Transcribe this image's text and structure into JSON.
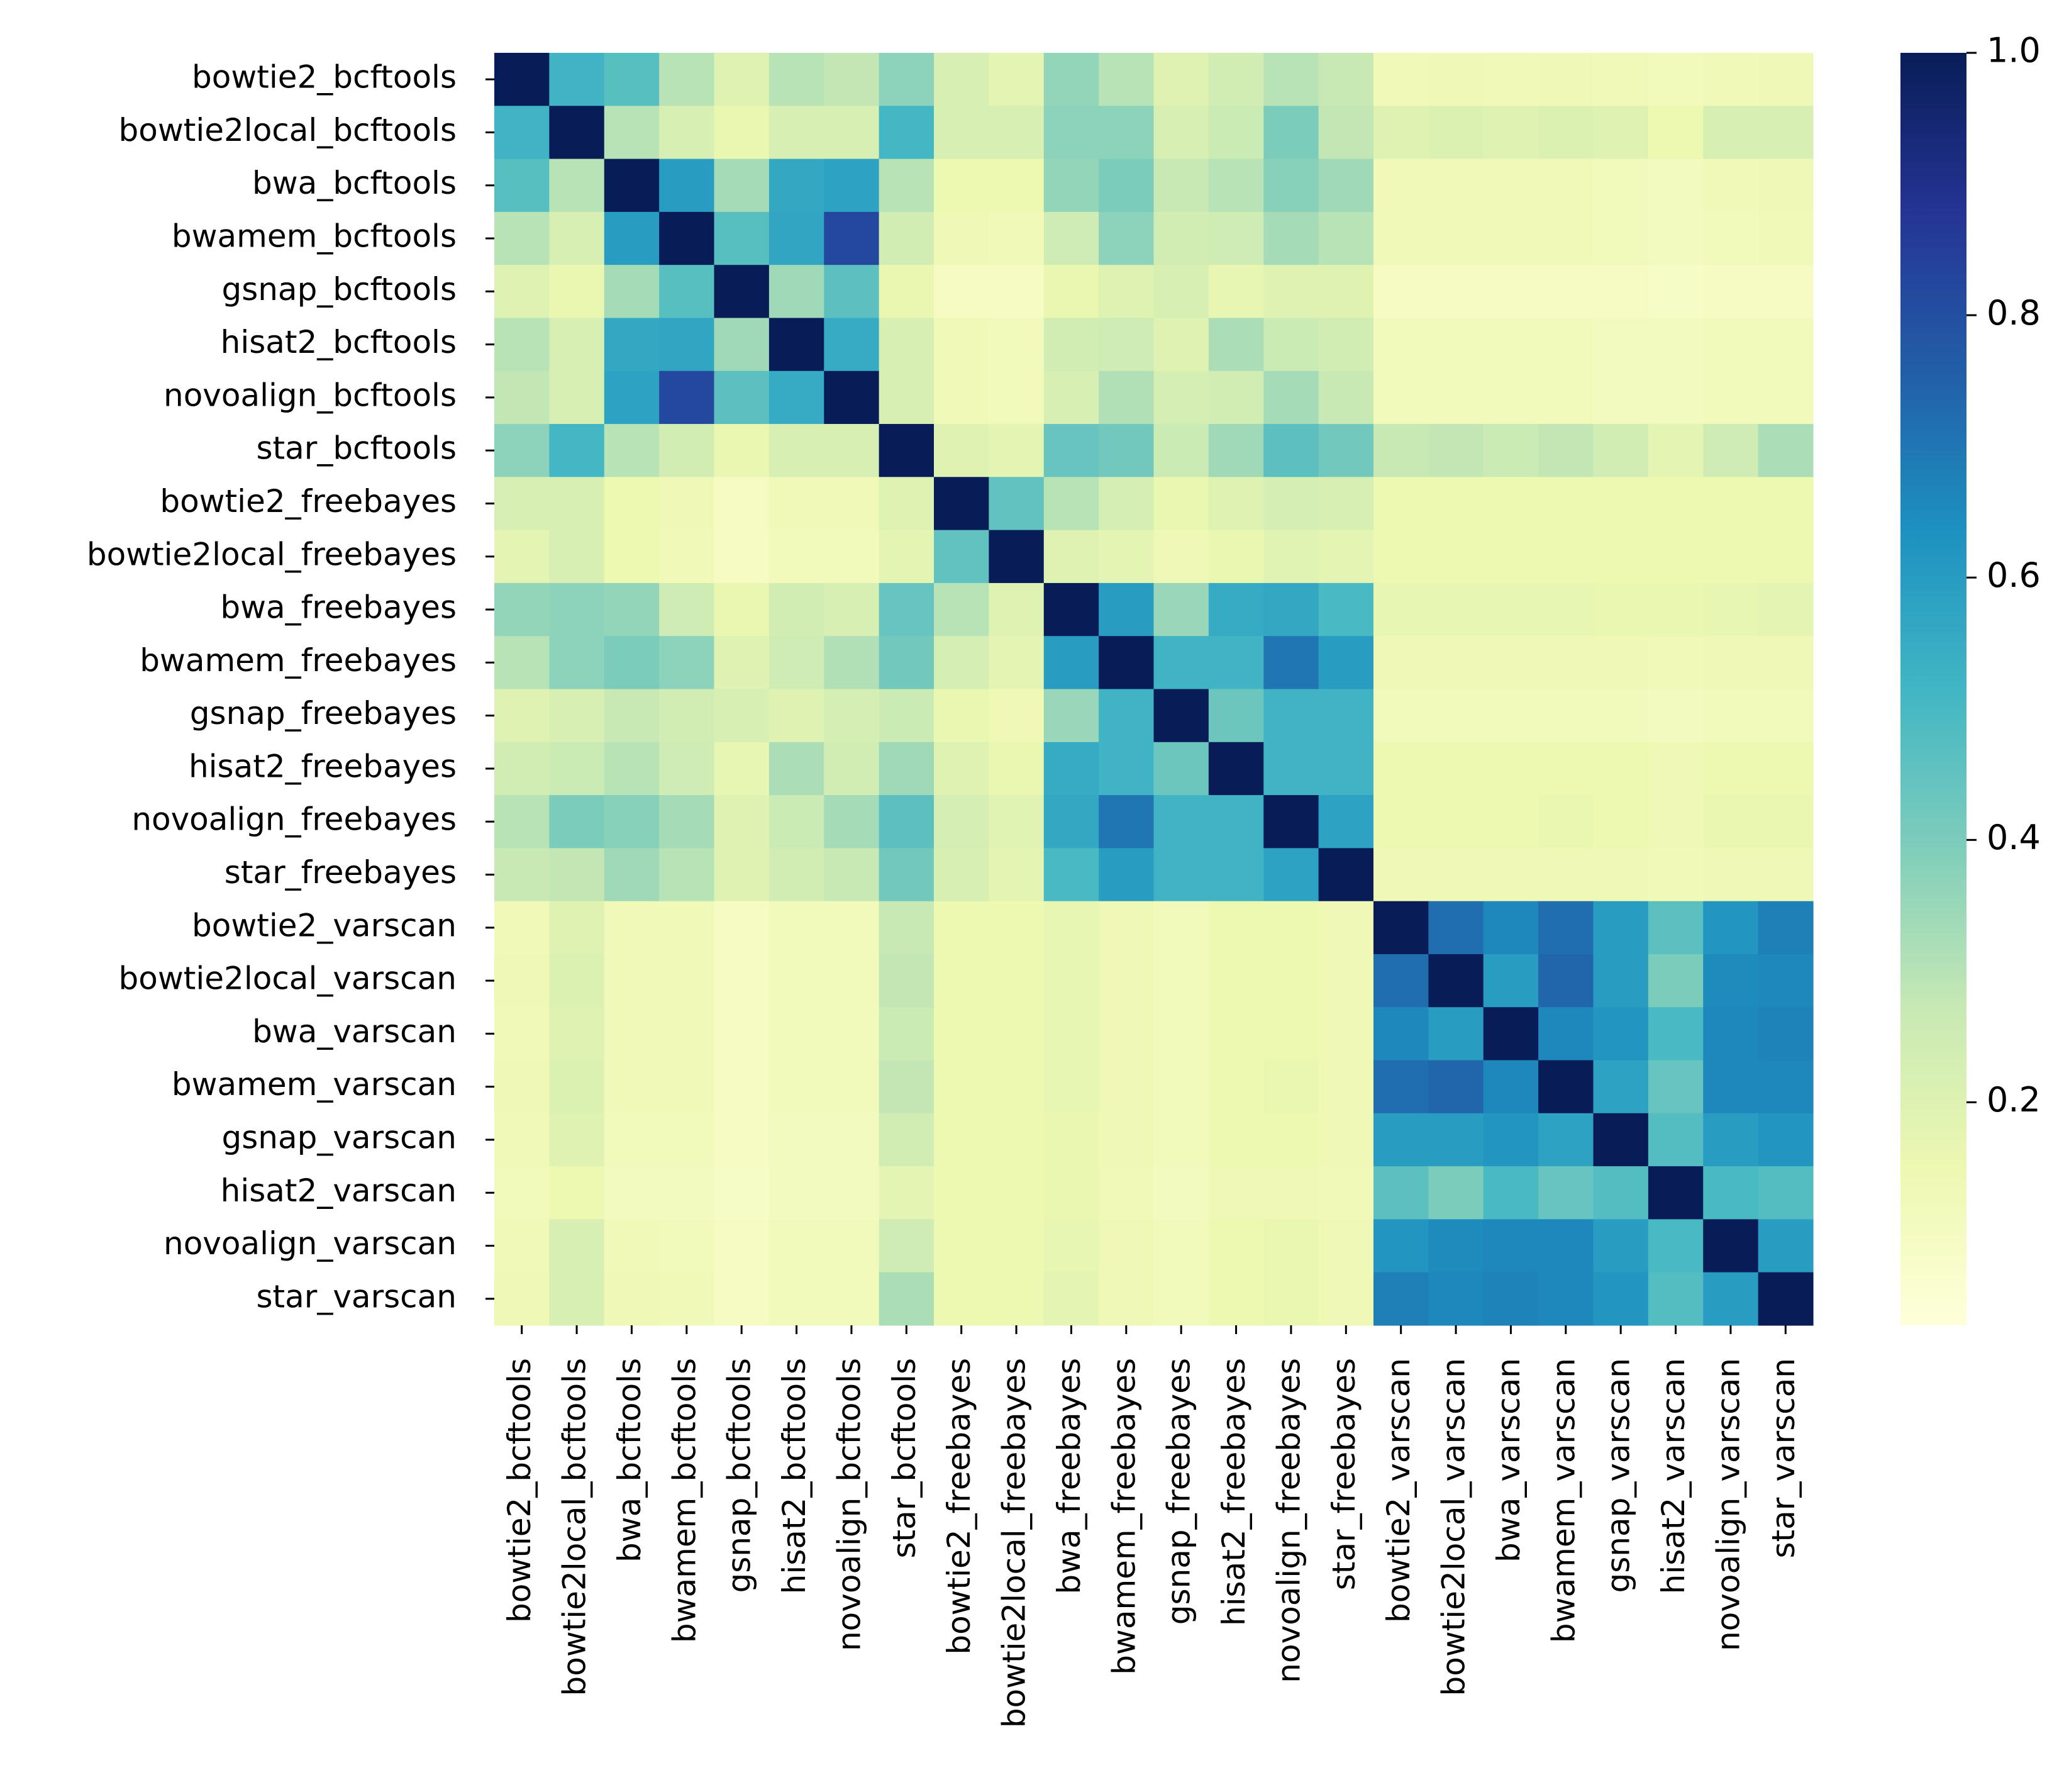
{
  "chart_data": {
    "type": "heatmap",
    "title": "",
    "xlabel": "",
    "ylabel": "",
    "labels": [
      "bowtie2_bcftools",
      "bowtie2local_bcftools",
      "bwa_bcftools",
      "bwamem_bcftools",
      "gsnap_bcftools",
      "hisat2_bcftools",
      "novoalign_bcftools",
      "star_bcftools",
      "bowtie2_freebayes",
      "bowtie2local_freebayes",
      "bwa_freebayes",
      "bwamem_freebayes",
      "gsnap_freebayes",
      "hisat2_freebayes",
      "novoalign_freebayes",
      "star_freebayes",
      "bowtie2_varscan",
      "bowtie2local_varscan",
      "bwa_varscan",
      "bwamem_varscan",
      "gsnap_varscan",
      "hisat2_varscan",
      "novoalign_varscan",
      "star_varscan"
    ],
    "values": [
      [
        1.0,
        0.52,
        0.47,
        0.3,
        0.2,
        0.3,
        0.28,
        0.37,
        0.22,
        0.18,
        0.36,
        0.3,
        0.2,
        0.24,
        0.3,
        0.27,
        0.13,
        0.14,
        0.13,
        0.14,
        0.13,
        0.12,
        0.13,
        0.14
      ],
      [
        0.52,
        1.0,
        0.3,
        0.22,
        0.16,
        0.22,
        0.22,
        0.51,
        0.22,
        0.22,
        0.37,
        0.37,
        0.22,
        0.26,
        0.4,
        0.28,
        0.2,
        0.21,
        0.2,
        0.21,
        0.2,
        0.15,
        0.22,
        0.22
      ],
      [
        0.47,
        0.3,
        1.0,
        0.6,
        0.33,
        0.56,
        0.58,
        0.3,
        0.15,
        0.15,
        0.36,
        0.4,
        0.27,
        0.3,
        0.38,
        0.34,
        0.13,
        0.13,
        0.13,
        0.13,
        0.12,
        0.11,
        0.13,
        0.14
      ],
      [
        0.3,
        0.22,
        0.6,
        1.0,
        0.47,
        0.57,
        0.82,
        0.24,
        0.14,
        0.13,
        0.25,
        0.37,
        0.24,
        0.25,
        0.33,
        0.3,
        0.13,
        0.13,
        0.13,
        0.13,
        0.12,
        0.11,
        0.12,
        0.13
      ],
      [
        0.2,
        0.16,
        0.33,
        0.47,
        1.0,
        0.34,
        0.46,
        0.16,
        0.1,
        0.1,
        0.16,
        0.2,
        0.22,
        0.17,
        0.2,
        0.2,
        0.1,
        0.1,
        0.1,
        0.1,
        0.1,
        0.09,
        0.1,
        0.1
      ],
      [
        0.3,
        0.22,
        0.56,
        0.57,
        0.34,
        1.0,
        0.55,
        0.22,
        0.13,
        0.12,
        0.24,
        0.25,
        0.2,
        0.32,
        0.26,
        0.24,
        0.12,
        0.12,
        0.12,
        0.12,
        0.11,
        0.11,
        0.12,
        0.12
      ],
      [
        0.28,
        0.22,
        0.58,
        0.82,
        0.46,
        0.55,
        1.0,
        0.22,
        0.13,
        0.12,
        0.22,
        0.31,
        0.23,
        0.24,
        0.33,
        0.27,
        0.12,
        0.12,
        0.12,
        0.12,
        0.11,
        0.11,
        0.12,
        0.12
      ],
      [
        0.37,
        0.51,
        0.3,
        0.24,
        0.16,
        0.22,
        0.22,
        1.0,
        0.2,
        0.18,
        0.44,
        0.42,
        0.26,
        0.34,
        0.46,
        0.42,
        0.27,
        0.28,
        0.26,
        0.28,
        0.24,
        0.18,
        0.25,
        0.32
      ],
      [
        0.22,
        0.22,
        0.15,
        0.14,
        0.1,
        0.13,
        0.13,
        0.2,
        1.0,
        0.45,
        0.3,
        0.23,
        0.16,
        0.2,
        0.23,
        0.22,
        0.15,
        0.15,
        0.15,
        0.15,
        0.15,
        0.15,
        0.15,
        0.15
      ],
      [
        0.18,
        0.22,
        0.15,
        0.13,
        0.1,
        0.12,
        0.12,
        0.18,
        0.45,
        1.0,
        0.2,
        0.18,
        0.14,
        0.16,
        0.19,
        0.18,
        0.15,
        0.15,
        0.15,
        0.15,
        0.15,
        0.15,
        0.15,
        0.15
      ],
      [
        0.36,
        0.37,
        0.36,
        0.25,
        0.16,
        0.24,
        0.22,
        0.44,
        0.3,
        0.2,
        1.0,
        0.6,
        0.35,
        0.55,
        0.56,
        0.5,
        0.17,
        0.17,
        0.17,
        0.17,
        0.16,
        0.16,
        0.17,
        0.18
      ],
      [
        0.3,
        0.37,
        0.4,
        0.37,
        0.2,
        0.25,
        0.31,
        0.42,
        0.23,
        0.18,
        0.6,
        1.0,
        0.52,
        0.52,
        0.7,
        0.6,
        0.14,
        0.14,
        0.14,
        0.14,
        0.14,
        0.13,
        0.14,
        0.14
      ],
      [
        0.2,
        0.22,
        0.27,
        0.24,
        0.22,
        0.2,
        0.23,
        0.26,
        0.16,
        0.14,
        0.35,
        0.52,
        1.0,
        0.43,
        0.52,
        0.52,
        0.12,
        0.12,
        0.12,
        0.12,
        0.12,
        0.11,
        0.12,
        0.12
      ],
      [
        0.24,
        0.26,
        0.3,
        0.25,
        0.17,
        0.32,
        0.24,
        0.34,
        0.2,
        0.16,
        0.55,
        0.52,
        0.43,
        1.0,
        0.52,
        0.52,
        0.15,
        0.15,
        0.15,
        0.15,
        0.15,
        0.14,
        0.15,
        0.15
      ],
      [
        0.3,
        0.4,
        0.38,
        0.33,
        0.2,
        0.26,
        0.33,
        0.46,
        0.23,
        0.19,
        0.56,
        0.7,
        0.52,
        0.52,
        1.0,
        0.58,
        0.15,
        0.15,
        0.15,
        0.16,
        0.15,
        0.14,
        0.16,
        0.16
      ],
      [
        0.27,
        0.28,
        0.34,
        0.3,
        0.2,
        0.24,
        0.27,
        0.42,
        0.22,
        0.18,
        0.5,
        0.6,
        0.52,
        0.52,
        0.58,
        1.0,
        0.14,
        0.14,
        0.14,
        0.14,
        0.14,
        0.13,
        0.14,
        0.14
      ],
      [
        0.13,
        0.2,
        0.13,
        0.13,
        0.1,
        0.12,
        0.12,
        0.27,
        0.15,
        0.15,
        0.17,
        0.14,
        0.12,
        0.15,
        0.15,
        0.14,
        1.0,
        0.72,
        0.66,
        0.72,
        0.6,
        0.46,
        0.62,
        0.68
      ],
      [
        0.14,
        0.21,
        0.13,
        0.13,
        0.1,
        0.12,
        0.12,
        0.28,
        0.15,
        0.15,
        0.17,
        0.14,
        0.12,
        0.15,
        0.15,
        0.14,
        0.72,
        1.0,
        0.6,
        0.74,
        0.6,
        0.4,
        0.65,
        0.66
      ],
      [
        0.13,
        0.2,
        0.13,
        0.13,
        0.1,
        0.12,
        0.12,
        0.26,
        0.15,
        0.15,
        0.17,
        0.14,
        0.12,
        0.15,
        0.15,
        0.14,
        0.66,
        0.6,
        1.0,
        0.66,
        0.62,
        0.5,
        0.66,
        0.67
      ],
      [
        0.14,
        0.21,
        0.13,
        0.13,
        0.1,
        0.12,
        0.12,
        0.28,
        0.15,
        0.15,
        0.17,
        0.14,
        0.12,
        0.15,
        0.16,
        0.14,
        0.72,
        0.74,
        0.66,
        1.0,
        0.58,
        0.44,
        0.66,
        0.66
      ],
      [
        0.13,
        0.2,
        0.12,
        0.12,
        0.1,
        0.11,
        0.11,
        0.24,
        0.15,
        0.15,
        0.16,
        0.14,
        0.12,
        0.15,
        0.15,
        0.14,
        0.6,
        0.6,
        0.62,
        0.58,
        1.0,
        0.48,
        0.6,
        0.62
      ],
      [
        0.12,
        0.15,
        0.11,
        0.11,
        0.09,
        0.11,
        0.11,
        0.18,
        0.15,
        0.15,
        0.16,
        0.13,
        0.11,
        0.14,
        0.14,
        0.13,
        0.46,
        0.4,
        0.5,
        0.44,
        0.48,
        1.0,
        0.5,
        0.48
      ],
      [
        0.13,
        0.22,
        0.13,
        0.12,
        0.1,
        0.12,
        0.12,
        0.25,
        0.15,
        0.15,
        0.17,
        0.14,
        0.12,
        0.15,
        0.16,
        0.14,
        0.62,
        0.65,
        0.66,
        0.66,
        0.6,
        0.5,
        1.0,
        0.6
      ],
      [
        0.14,
        0.22,
        0.14,
        0.13,
        0.1,
        0.12,
        0.12,
        0.32,
        0.15,
        0.15,
        0.18,
        0.14,
        0.12,
        0.15,
        0.16,
        0.14,
        0.68,
        0.66,
        0.67,
        0.66,
        0.62,
        0.48,
        0.6,
        1.0
      ]
    ],
    "colorbar": {
      "colormap": "YlGnBu",
      "range": [
        0.03,
        1.0
      ],
      "ticks": [
        0.2,
        0.4,
        0.6,
        0.8,
        1.0
      ],
      "tick_labels": [
        "0.2",
        "0.4",
        "0.6",
        "0.8",
        "1.0"
      ],
      "placement": "right"
    }
  }
}
